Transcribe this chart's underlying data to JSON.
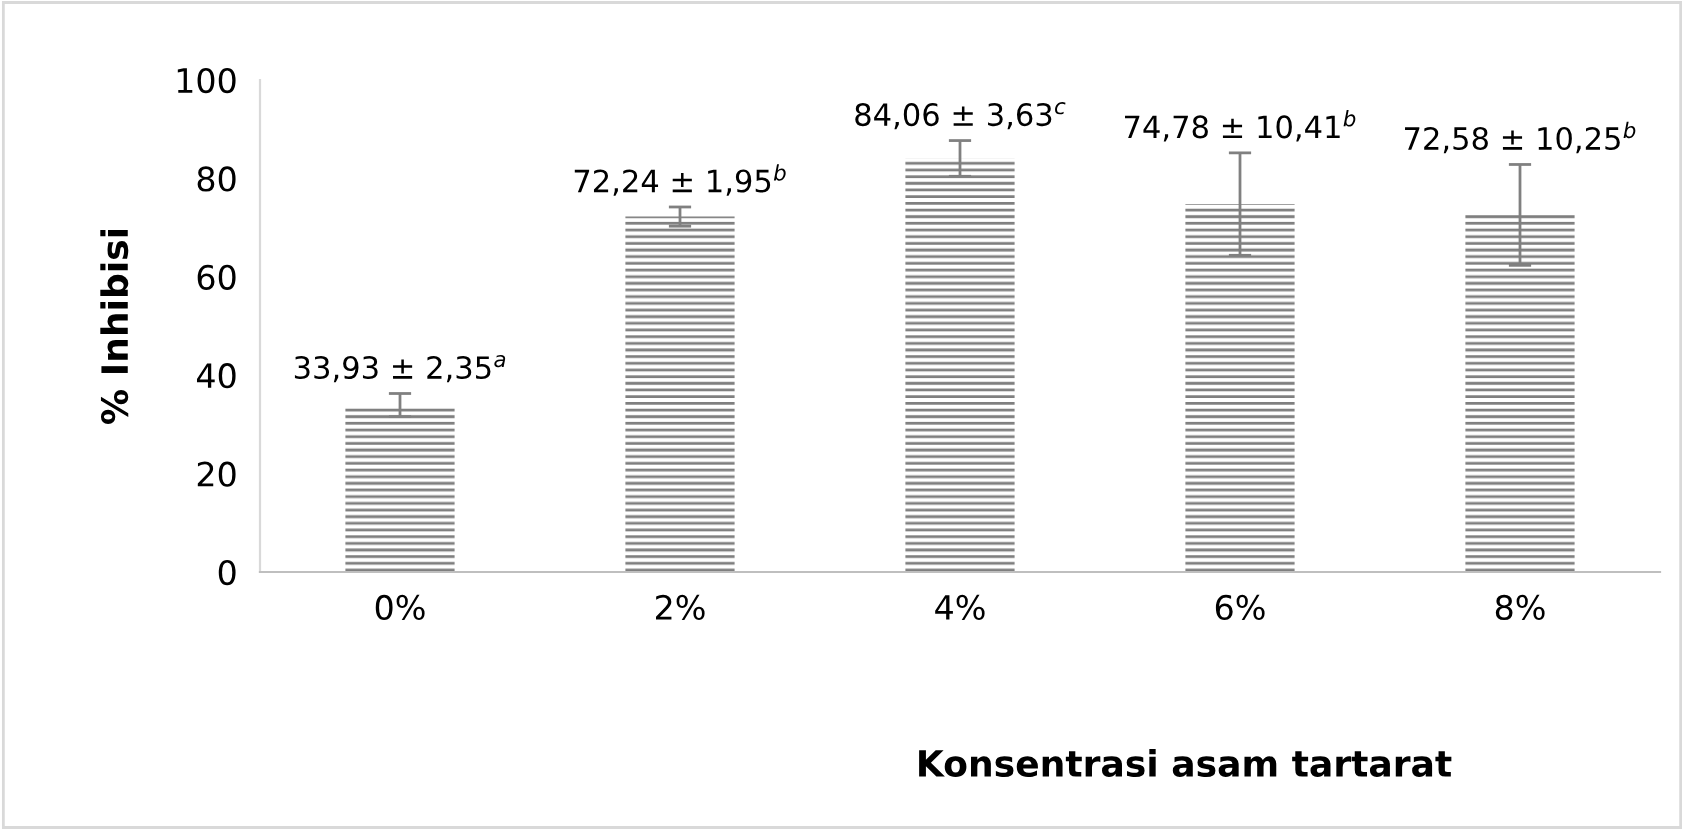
{
  "chart_data": {
    "type": "bar",
    "xlabel": "Konsentrasi asam tartarat",
    "ylabel": "% Inhibisi",
    "categories": [
      "0%",
      "2%",
      "4%",
      "6%",
      "8%"
    ],
    "values": [
      33.93,
      72.24,
      84.06,
      74.78,
      72.58
    ],
    "errors": [
      2.35,
      1.95,
      3.63,
      10.41,
      10.25
    ],
    "value_labels": [
      "33,93 ± 2,35$^{a}$",
      "72,24 ± 1,95$^{b}$",
      "84,06 ± 3,63$^{c}$",
      "74,78 ± 10,41$^{b}$",
      "72,58 ± 10,25$^{b}$"
    ],
    "color": "#7f7f7f",
    "ylim": [
      0,
      100
    ],
    "yticks": [
      0,
      20,
      40,
      60,
      80,
      100
    ],
    "grid": false,
    "legend": false
  }
}
